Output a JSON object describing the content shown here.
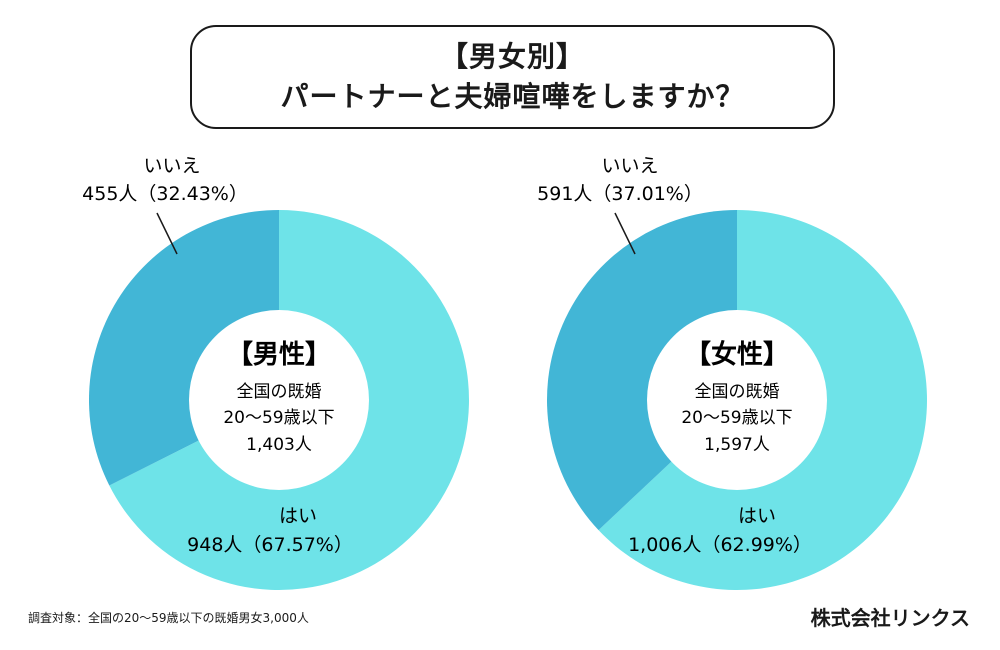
{
  "title": {
    "line1": "【男女別】",
    "line2": "パートナーと夫婦喧嘩をしますか？"
  },
  "chart_data": [
    {
      "type": "pie",
      "variant": "donut",
      "center": {
        "title": "【男性】",
        "line1": "全国の既婚",
        "line2": "20〜59歳以下",
        "line3": "1,403人"
      },
      "slices": [
        {
          "label": "はい",
          "value": 948,
          "percent": 67.57,
          "value_text": "948人（67.57%）",
          "color": "#6ee3e8"
        },
        {
          "label": "いいえ",
          "value": 455,
          "percent": 32.43,
          "value_text": "455人（32.43%）",
          "color": "#42b6d6"
        }
      ]
    },
    {
      "type": "pie",
      "variant": "donut",
      "center": {
        "title": "【女性】",
        "line1": "全国の既婚",
        "line2": "20〜59歳以下",
        "line3": "1,597人"
      },
      "slices": [
        {
          "label": "はい",
          "value": 1006,
          "percent": 62.99,
          "value_text": "1,006人（62.99%）",
          "color": "#6ee3e8"
        },
        {
          "label": "いいえ",
          "value": 591,
          "percent": 37.01,
          "value_text": "591人（37.01%）",
          "color": "#42b6d6"
        }
      ]
    }
  ],
  "footnote": "調査対象：全国の20〜59歳以下の既婚男女3,000人",
  "company": "株式会社リンクス"
}
